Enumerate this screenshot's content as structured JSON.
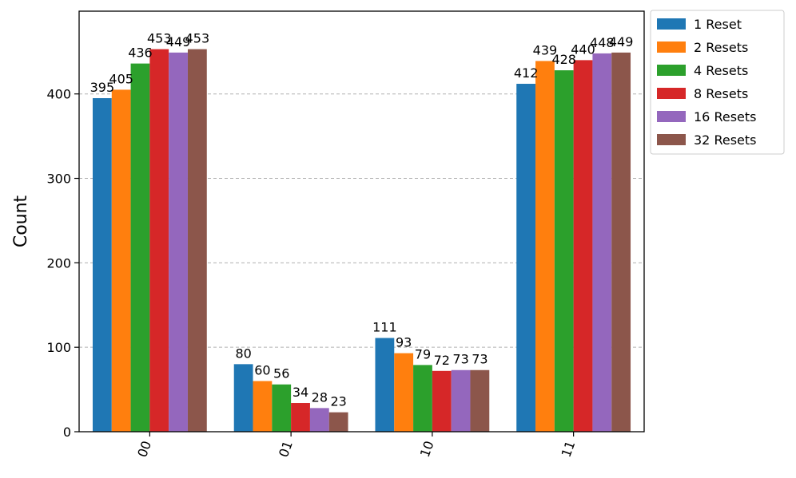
{
  "chart_data": {
    "type": "bar",
    "title": "",
    "xlabel": "",
    "ylabel": "Count",
    "categories": [
      "00",
      "01",
      "10",
      "11"
    ],
    "series": [
      {
        "name": "1 Reset",
        "color": "#1f77b4",
        "values": [
          395,
          80,
          111,
          412
        ]
      },
      {
        "name": "2 Resets",
        "color": "#ff7f0e",
        "values": [
          405,
          60,
          93,
          439
        ]
      },
      {
        "name": "4 Resets",
        "color": "#2ca02c",
        "values": [
          436,
          56,
          79,
          428
        ]
      },
      {
        "name": "8 Resets",
        "color": "#d62728",
        "values": [
          453,
          34,
          72,
          440
        ]
      },
      {
        "name": "16 Resets",
        "color": "#9467bd",
        "values": [
          449,
          28,
          73,
          448
        ]
      },
      {
        "name": "32 Resets",
        "color": "#8c564b",
        "values": [
          453,
          23,
          73,
          449
        ]
      }
    ],
    "ylim": [
      0,
      498
    ],
    "yticks": [
      0,
      100,
      200,
      300,
      400
    ],
    "grid": "y-dashed",
    "legend_position": "outside-top-right",
    "xtick_rotation": "rotated"
  }
}
